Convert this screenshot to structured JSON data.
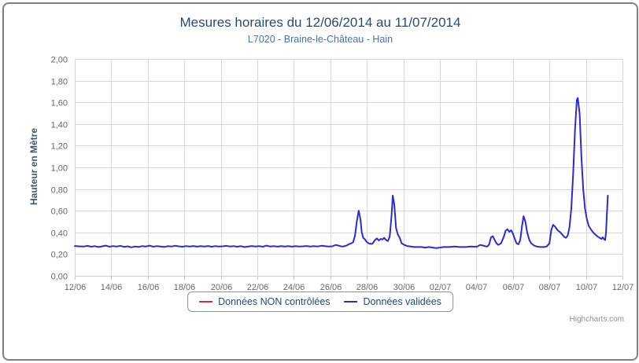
{
  "chart": {
    "title": "Mesures horaires du 12/06/2014 au 11/07/2014",
    "subtitle": "L7020 - Braine-le-Château - Hain",
    "credits": "Highcharts.com"
  },
  "colors": {
    "title": "#274b6d",
    "subtitle": "#4572a7",
    "axis_title": "#3e576f",
    "tick_label": "#666666",
    "gridline": "#d8d8d8",
    "axis_line": "#c0d0e0",
    "legend_text": "#274b6d",
    "legend_border": "#909090",
    "credits": "#909090"
  },
  "legend": {
    "items": [
      {
        "label": "Données NON contrôlées",
        "color": "#d62b2b"
      },
      {
        "label": "Données validées",
        "color": "#2b2bd6"
      }
    ]
  },
  "chart_data": {
    "type": "line",
    "title": "Mesures horaires du 12/06/2014 au 11/07/2014",
    "subtitle": "L7020 - Braine-le-Château - Hain",
    "xlabel": "",
    "ylabel": "Hauteur en Mètre",
    "x_unit": "days since 12/06/2014",
    "xlim": [
      0,
      30
    ],
    "ylim": [
      0,
      2
    ],
    "grid": true,
    "legend_position": "bottom",
    "x_tick_positions": [
      0,
      2,
      4,
      6,
      8,
      10,
      12,
      14,
      16,
      18,
      20,
      22,
      24,
      26,
      28,
      30
    ],
    "x_tick_labels": [
      "12/06",
      "14/06",
      "16/06",
      "18/06",
      "20/06",
      "22/06",
      "24/06",
      "26/06",
      "28/06",
      "30/06",
      "02/07",
      "04/07",
      "06/07",
      "08/07",
      "10/07",
      "12/07"
    ],
    "y_tick_values": [
      0,
      0.2,
      0.4,
      0.6,
      0.8,
      1.0,
      1.2,
      1.4,
      1.6,
      1.8,
      2.0
    ],
    "y_tick_labels": [
      "0,00",
      "0,20",
      "0,40",
      "0,60",
      "0,80",
      "1,00",
      "1,20",
      "1,40",
      "1,60",
      "1,80",
      "2,00"
    ],
    "series": [
      {
        "name": "Données NON contrôlées",
        "color": "#d62b2b",
        "points": []
      },
      {
        "name": "Données validées",
        "color": "#2b2bd6",
        "points": [
          [
            0,
            0.275
          ],
          [
            0.25,
            0.272
          ],
          [
            0.5,
            0.27
          ],
          [
            0.7,
            0.276
          ],
          [
            0.9,
            0.268
          ],
          [
            1.1,
            0.273
          ],
          [
            1.3,
            0.265
          ],
          [
            1.5,
            0.272
          ],
          [
            1.7,
            0.278
          ],
          [
            1.9,
            0.268
          ],
          [
            2.1,
            0.274
          ],
          [
            2.3,
            0.27
          ],
          [
            2.5,
            0.276
          ],
          [
            2.7,
            0.267
          ],
          [
            2.9,
            0.272
          ],
          [
            3.1,
            0.262
          ],
          [
            3.3,
            0.27
          ],
          [
            3.5,
            0.266
          ],
          [
            3.7,
            0.274
          ],
          [
            3.9,
            0.27
          ],
          [
            4.1,
            0.278
          ],
          [
            4.3,
            0.268
          ],
          [
            4.5,
            0.274
          ],
          [
            4.7,
            0.27
          ],
          [
            4.9,
            0.266
          ],
          [
            5.1,
            0.273
          ],
          [
            5.3,
            0.27
          ],
          [
            5.5,
            0.277
          ],
          [
            5.7,
            0.272
          ],
          [
            5.9,
            0.268
          ],
          [
            6.1,
            0.274
          ],
          [
            6.3,
            0.27
          ],
          [
            6.5,
            0.275
          ],
          [
            6.7,
            0.269
          ],
          [
            6.9,
            0.274
          ],
          [
            7.1,
            0.27
          ],
          [
            7.3,
            0.275
          ],
          [
            7.5,
            0.268
          ],
          [
            7.7,
            0.274
          ],
          [
            7.9,
            0.27
          ],
          [
            8.1,
            0.272
          ],
          [
            8.3,
            0.276
          ],
          [
            8.5,
            0.27
          ],
          [
            8.7,
            0.274
          ],
          [
            8.9,
            0.268
          ],
          [
            9.1,
            0.273
          ],
          [
            9.3,
            0.265
          ],
          [
            9.5,
            0.27
          ],
          [
            9.7,
            0.275
          ],
          [
            9.9,
            0.27
          ],
          [
            10.1,
            0.274
          ],
          [
            10.3,
            0.268
          ],
          [
            10.5,
            0.278
          ],
          [
            10.7,
            0.27
          ],
          [
            10.9,
            0.274
          ],
          [
            11.1,
            0.269
          ],
          [
            11.3,
            0.274
          ],
          [
            11.5,
            0.27
          ],
          [
            11.7,
            0.274
          ],
          [
            11.9,
            0.269
          ],
          [
            12.1,
            0.274
          ],
          [
            12.3,
            0.27
          ],
          [
            12.5,
            0.272
          ],
          [
            12.7,
            0.275
          ],
          [
            12.9,
            0.27
          ],
          [
            13.1,
            0.274
          ],
          [
            13.3,
            0.27
          ],
          [
            13.5,
            0.277
          ],
          [
            13.7,
            0.273
          ],
          [
            13.9,
            0.27
          ],
          [
            14.1,
            0.272
          ],
          [
            14.3,
            0.285
          ],
          [
            14.45,
            0.278
          ],
          [
            14.6,
            0.27
          ],
          [
            14.75,
            0.272
          ],
          [
            14.9,
            0.28
          ],
          [
            15.0,
            0.29
          ],
          [
            15.15,
            0.3
          ],
          [
            15.25,
            0.31
          ],
          [
            15.35,
            0.37
          ],
          [
            15.45,
            0.5
          ],
          [
            15.55,
            0.6
          ],
          [
            15.65,
            0.52
          ],
          [
            15.72,
            0.4
          ],
          [
            15.8,
            0.35
          ],
          [
            15.9,
            0.335
          ],
          [
            16.0,
            0.31
          ],
          [
            16.15,
            0.295
          ],
          [
            16.3,
            0.295
          ],
          [
            16.45,
            0.33
          ],
          [
            16.55,
            0.345
          ],
          [
            16.65,
            0.325
          ],
          [
            16.75,
            0.34
          ],
          [
            16.85,
            0.335
          ],
          [
            16.95,
            0.35
          ],
          [
            17.05,
            0.33
          ],
          [
            17.15,
            0.32
          ],
          [
            17.25,
            0.36
          ],
          [
            17.35,
            0.55
          ],
          [
            17.42,
            0.74
          ],
          [
            17.5,
            0.66
          ],
          [
            17.6,
            0.44
          ],
          [
            17.7,
            0.38
          ],
          [
            17.8,
            0.35
          ],
          [
            17.9,
            0.3
          ],
          [
            18.05,
            0.285
          ],
          [
            18.2,
            0.275
          ],
          [
            18.4,
            0.27
          ],
          [
            18.6,
            0.265
          ],
          [
            18.8,
            0.265
          ],
          [
            19.0,
            0.265
          ],
          [
            19.2,
            0.26
          ],
          [
            19.4,
            0.265
          ],
          [
            19.6,
            0.26
          ],
          [
            19.8,
            0.255
          ],
          [
            20.0,
            0.26
          ],
          [
            20.2,
            0.265
          ],
          [
            20.5,
            0.265
          ],
          [
            20.8,
            0.27
          ],
          [
            21.1,
            0.265
          ],
          [
            21.4,
            0.265
          ],
          [
            21.7,
            0.27
          ],
          [
            21.9,
            0.268
          ],
          [
            22.05,
            0.27
          ],
          [
            22.2,
            0.285
          ],
          [
            22.35,
            0.28
          ],
          [
            22.5,
            0.272
          ],
          [
            22.6,
            0.27
          ],
          [
            22.7,
            0.29
          ],
          [
            22.8,
            0.355
          ],
          [
            22.9,
            0.365
          ],
          [
            23.0,
            0.33
          ],
          [
            23.1,
            0.3
          ],
          [
            23.2,
            0.285
          ],
          [
            23.35,
            0.3
          ],
          [
            23.5,
            0.36
          ],
          [
            23.6,
            0.415
          ],
          [
            23.7,
            0.43
          ],
          [
            23.8,
            0.405
          ],
          [
            23.9,
            0.42
          ],
          [
            24.0,
            0.39
          ],
          [
            24.1,
            0.34
          ],
          [
            24.2,
            0.3
          ],
          [
            24.3,
            0.29
          ],
          [
            24.4,
            0.33
          ],
          [
            24.5,
            0.46
          ],
          [
            24.58,
            0.55
          ],
          [
            24.68,
            0.5
          ],
          [
            24.78,
            0.4
          ],
          [
            24.9,
            0.33
          ],
          [
            25.0,
            0.3
          ],
          [
            25.15,
            0.28
          ],
          [
            25.3,
            0.27
          ],
          [
            25.5,
            0.265
          ],
          [
            25.7,
            0.265
          ],
          [
            25.85,
            0.27
          ],
          [
            26.0,
            0.3
          ],
          [
            26.1,
            0.42
          ],
          [
            26.2,
            0.47
          ],
          [
            26.3,
            0.455
          ],
          [
            26.45,
            0.42
          ],
          [
            26.6,
            0.4
          ],
          [
            26.7,
            0.38
          ],
          [
            26.8,
            0.36
          ],
          [
            26.9,
            0.35
          ],
          [
            27.0,
            0.37
          ],
          [
            27.1,
            0.45
          ],
          [
            27.2,
            0.62
          ],
          [
            27.3,
            0.95
          ],
          [
            27.4,
            1.35
          ],
          [
            27.5,
            1.62
          ],
          [
            27.55,
            1.64
          ],
          [
            27.65,
            1.5
          ],
          [
            27.75,
            1.1
          ],
          [
            27.85,
            0.8
          ],
          [
            27.95,
            0.62
          ],
          [
            28.05,
            0.52
          ],
          [
            28.15,
            0.46
          ],
          [
            28.3,
            0.42
          ],
          [
            28.45,
            0.39
          ],
          [
            28.55,
            0.375
          ],
          [
            28.65,
            0.36
          ],
          [
            28.75,
            0.35
          ],
          [
            28.85,
            0.34
          ],
          [
            28.92,
            0.355
          ],
          [
            29.0,
            0.335
          ],
          [
            29.05,
            0.33
          ],
          [
            29.1,
            0.4
          ],
          [
            29.15,
            0.58
          ],
          [
            29.2,
            0.74
          ]
        ]
      }
    ]
  }
}
